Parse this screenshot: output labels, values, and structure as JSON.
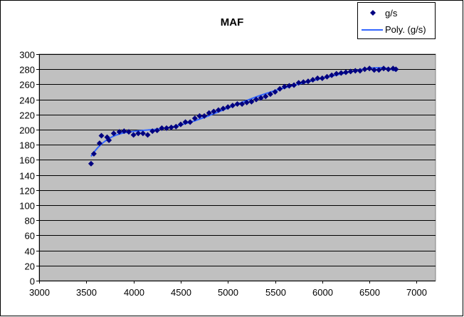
{
  "chart_data": {
    "type": "scatter",
    "title": "MAF",
    "xlabel": "",
    "ylabel": "",
    "xlim": [
      3000,
      7200
    ],
    "ylim": [
      0,
      300
    ],
    "x_ticks": [
      3000,
      3500,
      4000,
      4500,
      5000,
      5500,
      6000,
      6500,
      7000
    ],
    "y_ticks": [
      0,
      20,
      40,
      60,
      80,
      100,
      120,
      140,
      160,
      180,
      200,
      220,
      240,
      260,
      280,
      300
    ],
    "grid": "horizontal major",
    "legend_position": "top-right",
    "plot_background": "#c0c0c0",
    "series": [
      {
        "name": "g/s",
        "marker": "diamond",
        "color": "#000080",
        "x": [
          3550,
          3580,
          3640,
          3660,
          3720,
          3740,
          3790,
          3850,
          3900,
          3950,
          4000,
          4050,
          4100,
          4150,
          4200,
          4250,
          4300,
          4350,
          4400,
          4450,
          4500,
          4550,
          4600,
          4650,
          4700,
          4750,
          4800,
          4850,
          4900,
          4950,
          5000,
          5050,
          5100,
          5150,
          5200,
          5250,
          5300,
          5350,
          5400,
          5450,
          5500,
          5550,
          5600,
          5650,
          5700,
          5750,
          5800,
          5850,
          5900,
          5950,
          6000,
          6050,
          6100,
          6150,
          6200,
          6250,
          6300,
          6350,
          6400,
          6450,
          6500,
          6550,
          6600,
          6650,
          6700,
          6750,
          6780
        ],
        "y": [
          155,
          168,
          182,
          192,
          190,
          186,
          195,
          197,
          198,
          197,
          193,
          195,
          195,
          193,
          198,
          199,
          202,
          202,
          203,
          204,
          207,
          210,
          210,
          215,
          218,
          218,
          222,
          224,
          226,
          228,
          230,
          232,
          234,
          234,
          236,
          237,
          240,
          242,
          244,
          247,
          250,
          254,
          257,
          258,
          259,
          262,
          263,
          264,
          266,
          268,
          268,
          270,
          272,
          274,
          275,
          276,
          277,
          278,
          278,
          280,
          281,
          279,
          279,
          281,
          280,
          281,
          280
        ]
      }
    ],
    "trendline": {
      "name": "Poly. (g/s)",
      "type": "polynomial",
      "color": "#3366ff"
    }
  }
}
